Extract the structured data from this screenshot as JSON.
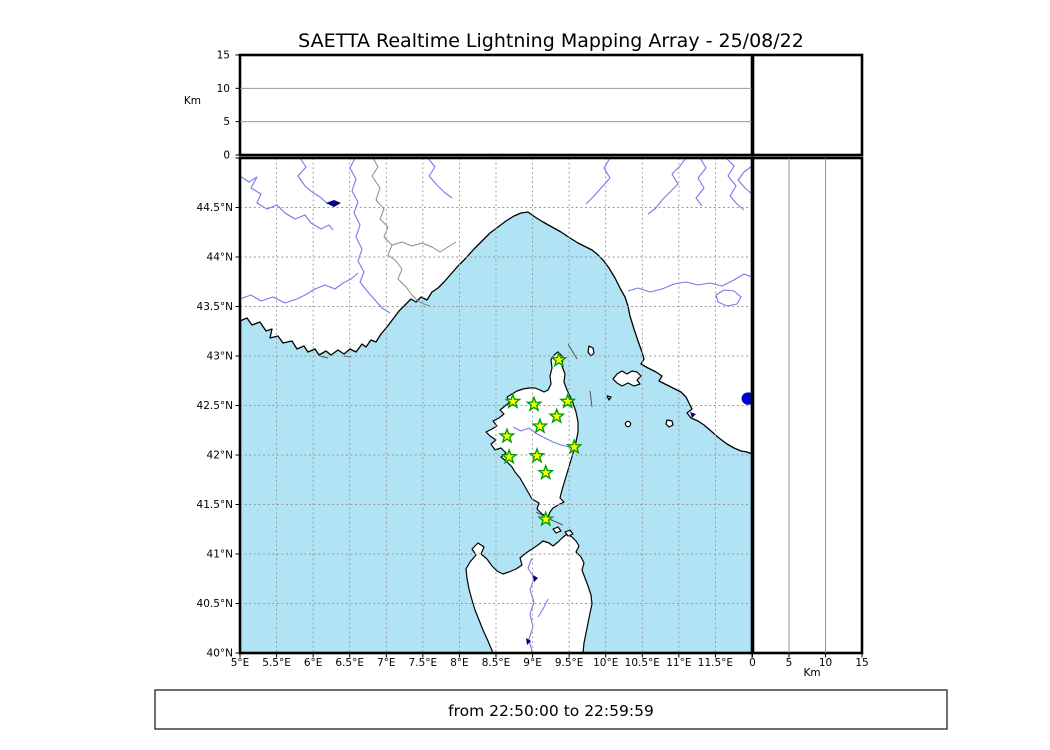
{
  "title": "SAETTA Realtime Lightning Mapping Array - 25/08/22",
  "footer": {
    "time_range": "from 22:50:00 to 22:59:59"
  },
  "axes": {
    "altitude_unit": "Km",
    "lon_tick_labels": [
      "5°E",
      "5.5°E",
      "6°E",
      "6.5°E",
      "7°E",
      "7.5°E",
      "8°E",
      "8.5°E",
      "9°E",
      "9.5°E",
      "10°E",
      "10.5°E",
      "11°E",
      "11.5°E"
    ],
    "lat_tick_labels": [
      "44.5°N",
      "44°N",
      "43.5°N",
      "43°N",
      "42.5°N",
      "42°N",
      "41.5°N",
      "41°N",
      "40.5°N",
      "40°N"
    ],
    "altitude_tick_labels": [
      "0",
      "5",
      "10",
      "15"
    ]
  },
  "colors": {
    "sea": "#b0e4f4",
    "land": "#ffffff",
    "coastline": "#000000",
    "river": "#7878ee",
    "gridline": "#999999",
    "station_fill": "#ffff00",
    "station_stroke": "#00a000",
    "lake_dot": "#0000cc"
  },
  "chart_data": {
    "type": "scatter",
    "title": "SAETTA Realtime Lightning Mapping Array - 25/08/22",
    "map": {
      "lon_range": [
        5,
        12
      ],
      "lat_range": [
        40,
        45
      ],
      "grid_step_deg": 0.5,
      "region": "Corsica with Ligurian/Tyrrhenian Sea, SE France, NW Italy coast, N Sardinia"
    },
    "altitude_panels": {
      "unit": "Km",
      "range_km": [
        0,
        15
      ],
      "tick_km": [
        0,
        5,
        10,
        15
      ],
      "gridline_km": [
        5,
        10
      ]
    },
    "stations": [
      {
        "lon": 9.36,
        "lat": 42.96
      },
      {
        "lon": 8.73,
        "lat": 42.54
      },
      {
        "lon": 9.02,
        "lat": 42.51
      },
      {
        "lon": 9.48,
        "lat": 42.54
      },
      {
        "lon": 9.33,
        "lat": 42.39
      },
      {
        "lon": 9.1,
        "lat": 42.29
      },
      {
        "lon": 8.65,
        "lat": 42.19
      },
      {
        "lon": 9.57,
        "lat": 42.08
      },
      {
        "lon": 8.68,
        "lat": 41.98
      },
      {
        "lon": 9.06,
        "lat": 41.99
      },
      {
        "lon": 9.18,
        "lat": 41.82
      },
      {
        "lon": 9.18,
        "lat": 41.35
      }
    ],
    "lightning_sources": [],
    "lake_markers": [
      {
        "lon": 11.95,
        "lat": 42.57
      }
    ]
  }
}
